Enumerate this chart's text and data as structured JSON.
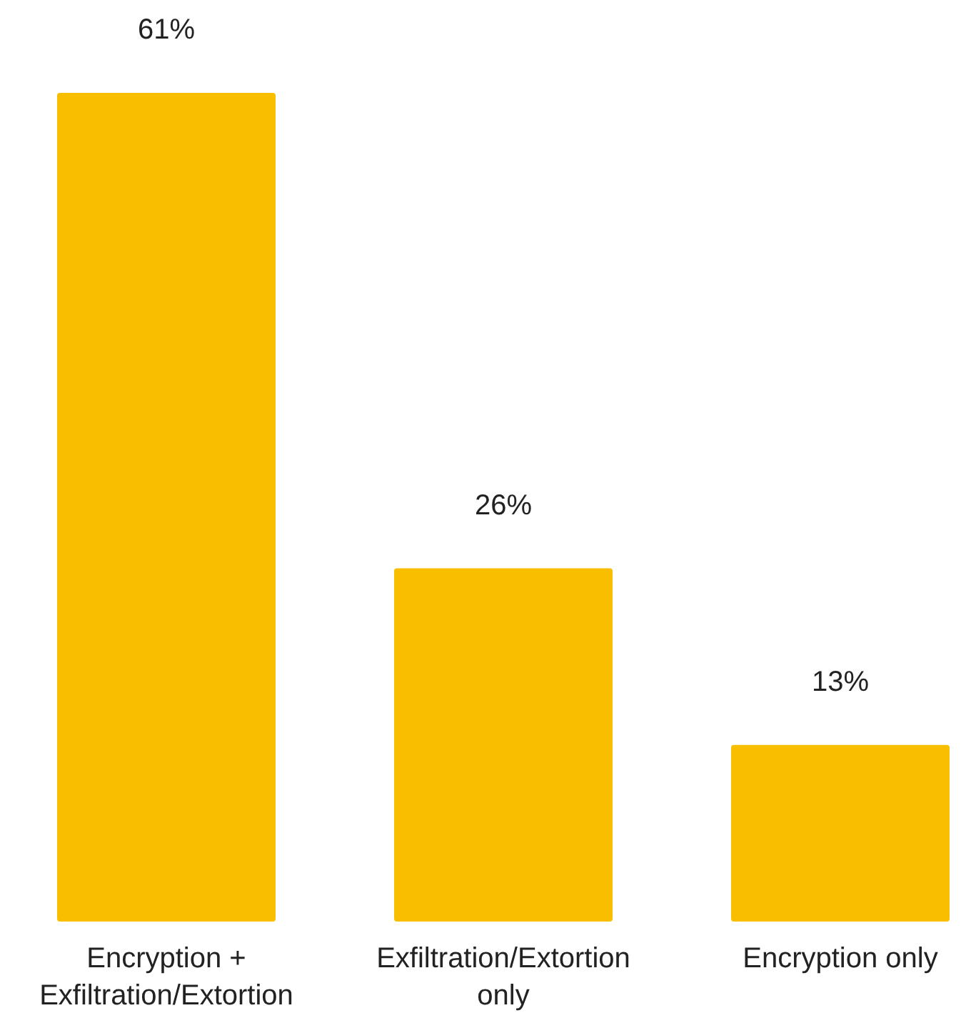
{
  "chart_data": {
    "type": "bar",
    "categories": [
      "Encryption + Exfiltration/Extortion",
      "Exfiltration/Extortion only",
      "Encryption only"
    ],
    "values": [
      61,
      26,
      13
    ],
    "value_labels": [
      "61%",
      "26%",
      "13%"
    ],
    "color": "#f9be00"
  }
}
